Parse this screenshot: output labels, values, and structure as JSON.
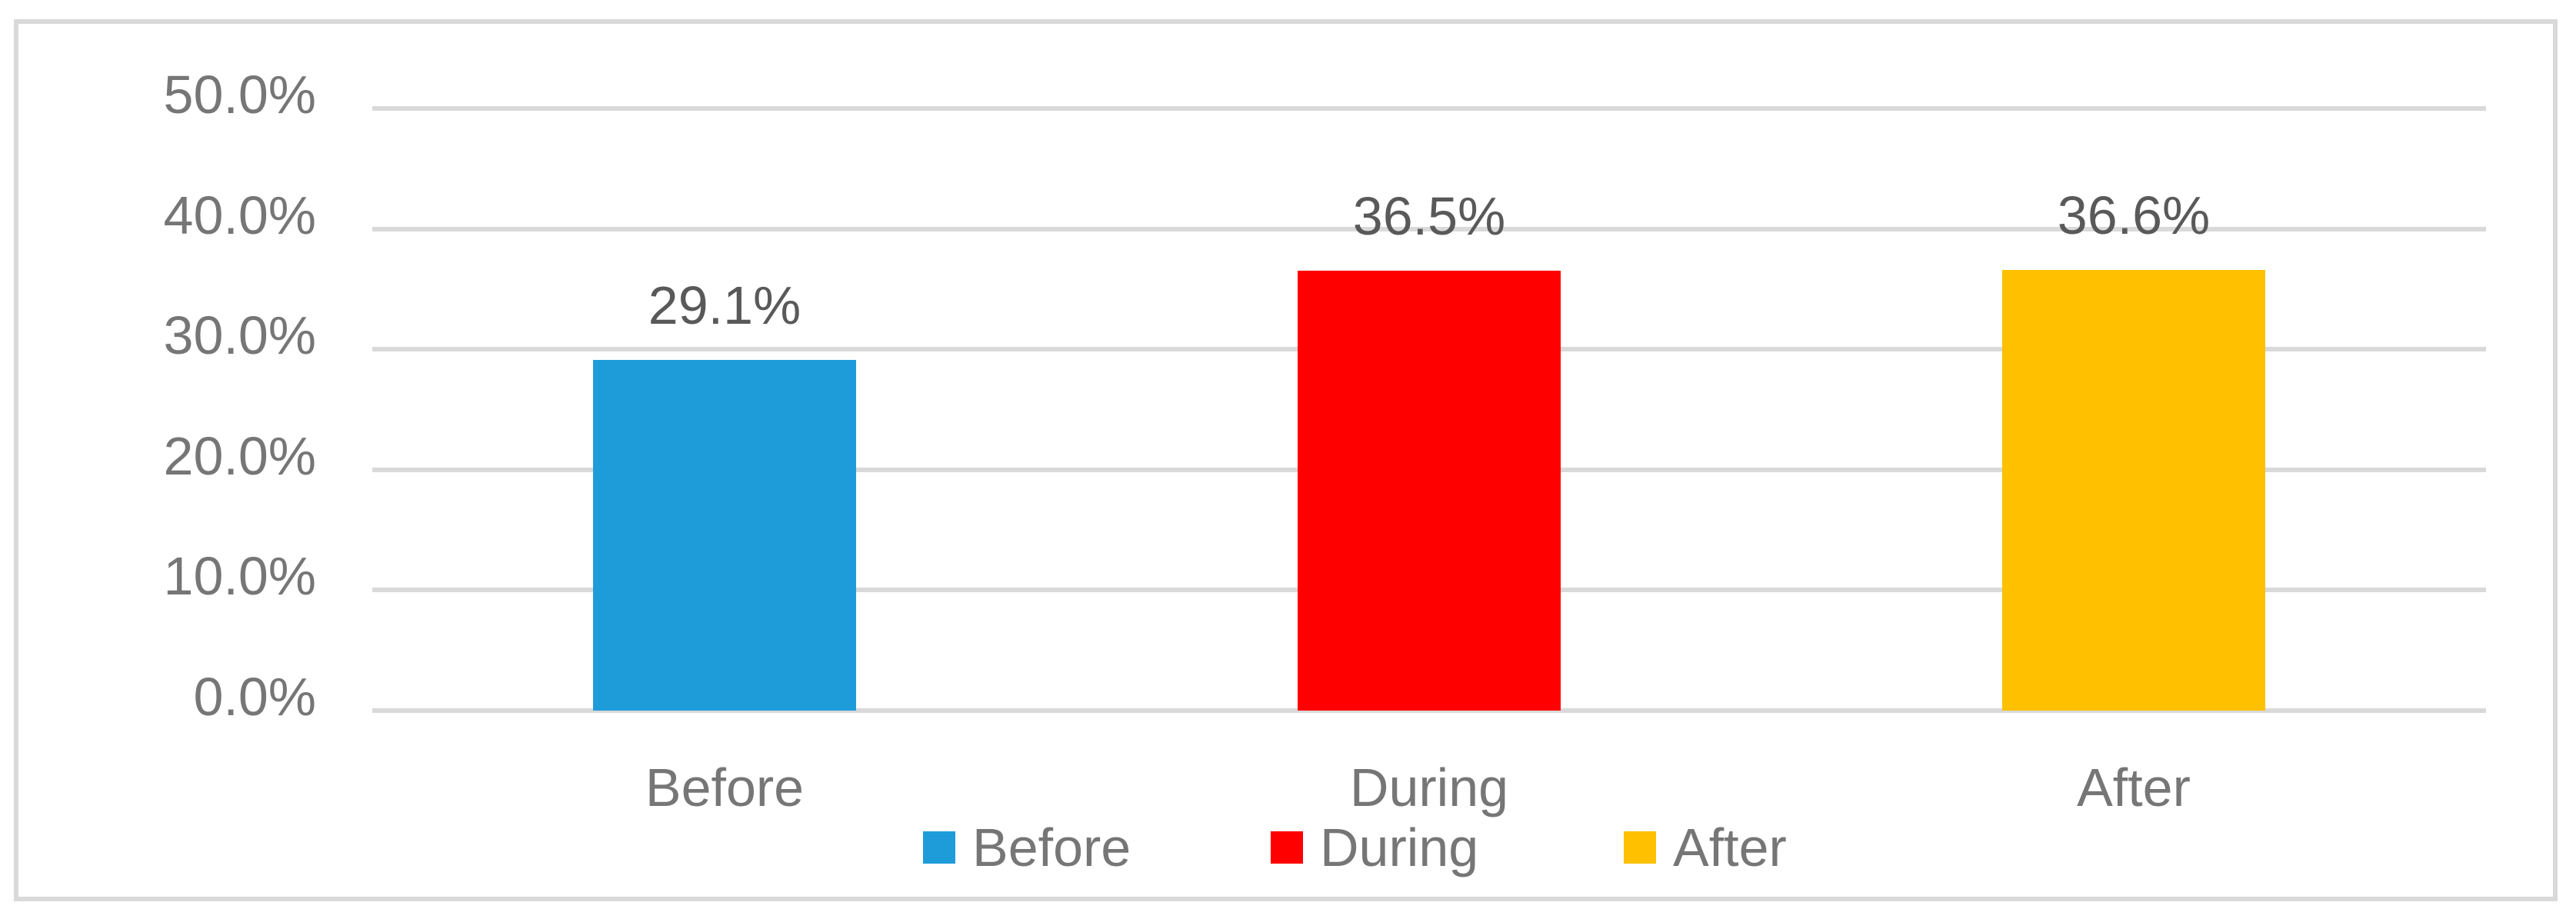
{
  "chart_data": {
    "type": "bar",
    "categories": [
      "Before",
      "During",
      "After"
    ],
    "values": [
      29.1,
      36.5,
      36.6
    ],
    "series": [
      {
        "name": "Before",
        "value": 29.1,
        "label": "29.1%",
        "color": "#1E9CD9"
      },
      {
        "name": "During",
        "value": 36.5,
        "label": "36.5%",
        "color": "#FF0000"
      },
      {
        "name": "After",
        "value": 36.6,
        "label": "36.6%",
        "color": "#FFC000"
      }
    ],
    "title": "",
    "xlabel": "",
    "ylabel": "",
    "ylim": [
      0,
      50
    ],
    "y_ticks": [
      "50.0%",
      "40.0%",
      "30.0%",
      "20.0%",
      "10.0%",
      "0.0%"
    ],
    "grid": true,
    "legend": {
      "position": "bottom",
      "entries": [
        "Before",
        "During",
        "After"
      ]
    }
  },
  "colors": {
    "background": "#FFFFFF",
    "frame_border": "#D9D9D9",
    "gridline": "#D9D9D9",
    "tick_text": "#767676",
    "category_text": "#767676",
    "legend_text": "#767676",
    "data_label_text": "#595959"
  }
}
